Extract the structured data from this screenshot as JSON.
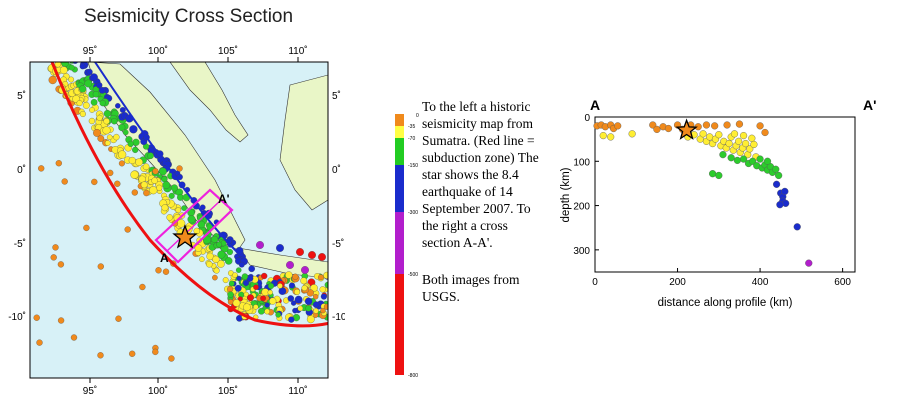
{
  "title": "Seismicity Cross Section",
  "map": {
    "lon_ticks": [
      "95˚",
      "100˚",
      "105˚",
      "110˚"
    ],
    "lat_ticks_left": [
      "5˚",
      "0˚",
      "-5˚",
      "-10˚"
    ],
    "lat_ticks_right": [
      "5˚",
      "0˚",
      "-5˚",
      "-10˚"
    ],
    "label_a": "A",
    "label_a_prime": "A'"
  },
  "colorbar": {
    "labels": [
      "0",
      "-35",
      "-70",
      "-150",
      "-300",
      "-500",
      "-800"
    ],
    "colors": [
      "#f08a1c",
      "#ffff44",
      "#22cc22",
      "#1a2ccc",
      "#b21ecc",
      "#ee1111"
    ]
  },
  "note": {
    "paragraph1": "To the left a historic seismicity map from Sumatra. (Red line = subduction zone) The star shows the 8.4 earthquake of 14 September 2007. To the right a cross section A-A'.",
    "paragraph2": "Both images from USGS."
  },
  "chart_data": {
    "type": "scatter",
    "title": "",
    "xlabel": "distance along profile (km)",
    "ylabel": "depth (km)",
    "xlim": [
      0,
      630
    ],
    "ylim": [
      0,
      350
    ],
    "y_inverted": true,
    "x_ticks": [
      "0",
      "200",
      "400",
      "600"
    ],
    "y_ticks": [
      "0",
      "100",
      "200",
      "300"
    ],
    "profile_start": "A",
    "profile_end": "A'",
    "star": {
      "x": 222,
      "y": 30
    },
    "points": [
      {
        "x": 5,
        "y": 20,
        "c": "orange"
      },
      {
        "x": 15,
        "y": 18,
        "c": "orange"
      },
      {
        "x": 25,
        "y": 22,
        "c": "orange"
      },
      {
        "x": 38,
        "y": 18,
        "c": "orange"
      },
      {
        "x": 45,
        "y": 26,
        "c": "orange"
      },
      {
        "x": 55,
        "y": 20,
        "c": "orange"
      },
      {
        "x": 20,
        "y": 42,
        "c": "yellow"
      },
      {
        "x": 38,
        "y": 45,
        "c": "yellow"
      },
      {
        "x": 90,
        "y": 38,
        "c": "yellow"
      },
      {
        "x": 140,
        "y": 18,
        "c": "orange"
      },
      {
        "x": 150,
        "y": 28,
        "c": "orange"
      },
      {
        "x": 165,
        "y": 22,
        "c": "orange"
      },
      {
        "x": 178,
        "y": 26,
        "c": "orange"
      },
      {
        "x": 200,
        "y": 18,
        "c": "orange"
      },
      {
        "x": 212,
        "y": 28,
        "c": "orange"
      },
      {
        "x": 232,
        "y": 18,
        "c": "orange"
      },
      {
        "x": 250,
        "y": 22,
        "c": "orange"
      },
      {
        "x": 270,
        "y": 18,
        "c": "orange"
      },
      {
        "x": 290,
        "y": 20,
        "c": "orange"
      },
      {
        "x": 320,
        "y": 18,
        "c": "orange"
      },
      {
        "x": 350,
        "y": 16,
        "c": "orange"
      },
      {
        "x": 400,
        "y": 20,
        "c": "orange"
      },
      {
        "x": 412,
        "y": 35,
        "c": "orange"
      },
      {
        "x": 225,
        "y": 45,
        "c": "yellow"
      },
      {
        "x": 240,
        "y": 40,
        "c": "yellow"
      },
      {
        "x": 255,
        "y": 50,
        "c": "yellow"
      },
      {
        "x": 262,
        "y": 38,
        "c": "yellow"
      },
      {
        "x": 270,
        "y": 55,
        "c": "yellow"
      },
      {
        "x": 278,
        "y": 45,
        "c": "yellow"
      },
      {
        "x": 285,
        "y": 60,
        "c": "yellow"
      },
      {
        "x": 292,
        "y": 50,
        "c": "yellow"
      },
      {
        "x": 300,
        "y": 40,
        "c": "yellow"
      },
      {
        "x": 305,
        "y": 65,
        "c": "yellow"
      },
      {
        "x": 312,
        "y": 55,
        "c": "yellow"
      },
      {
        "x": 318,
        "y": 70,
        "c": "yellow"
      },
      {
        "x": 325,
        "y": 60,
        "c": "yellow"
      },
      {
        "x": 330,
        "y": 45,
        "c": "yellow"
      },
      {
        "x": 335,
        "y": 75,
        "c": "yellow"
      },
      {
        "x": 342,
        "y": 65,
        "c": "yellow"
      },
      {
        "x": 348,
        "y": 55,
        "c": "yellow"
      },
      {
        "x": 352,
        "y": 80,
        "c": "yellow"
      },
      {
        "x": 358,
        "y": 70,
        "c": "yellow"
      },
      {
        "x": 365,
        "y": 60,
        "c": "yellow"
      },
      {
        "x": 370,
        "y": 85,
        "c": "yellow"
      },
      {
        "x": 375,
        "y": 72,
        "c": "yellow"
      },
      {
        "x": 380,
        "y": 48,
        "c": "yellow"
      },
      {
        "x": 385,
        "y": 62,
        "c": "yellow"
      },
      {
        "x": 390,
        "y": 90,
        "c": "yellow"
      },
      {
        "x": 338,
        "y": 38,
        "c": "yellow"
      },
      {
        "x": 360,
        "y": 42,
        "c": "yellow"
      },
      {
        "x": 310,
        "y": 85,
        "c": "green"
      },
      {
        "x": 330,
        "y": 92,
        "c": "green"
      },
      {
        "x": 345,
        "y": 98,
        "c": "green"
      },
      {
        "x": 360,
        "y": 95,
        "c": "green"
      },
      {
        "x": 372,
        "y": 105,
        "c": "green"
      },
      {
        "x": 382,
        "y": 100,
        "c": "green"
      },
      {
        "x": 392,
        "y": 110,
        "c": "green"
      },
      {
        "x": 400,
        "y": 95,
        "c": "green"
      },
      {
        "x": 405,
        "y": 115,
        "c": "green"
      },
      {
        "x": 412,
        "y": 108,
        "c": "green"
      },
      {
        "x": 418,
        "y": 120,
        "c": "green"
      },
      {
        "x": 425,
        "y": 112,
        "c": "green"
      },
      {
        "x": 430,
        "y": 125,
        "c": "green"
      },
      {
        "x": 438,
        "y": 118,
        "c": "green"
      },
      {
        "x": 445,
        "y": 132,
        "c": "green"
      },
      {
        "x": 285,
        "y": 128,
        "c": "green"
      },
      {
        "x": 300,
        "y": 132,
        "c": "green"
      },
      {
        "x": 418,
        "y": 100,
        "c": "green"
      },
      {
        "x": 440,
        "y": 152,
        "c": "blue"
      },
      {
        "x": 450,
        "y": 172,
        "c": "blue"
      },
      {
        "x": 455,
        "y": 180,
        "c": "blue"
      },
      {
        "x": 460,
        "y": 168,
        "c": "blue"
      },
      {
        "x": 455,
        "y": 190,
        "c": "blue"
      },
      {
        "x": 462,
        "y": 195,
        "c": "blue"
      },
      {
        "x": 448,
        "y": 198,
        "c": "blue"
      },
      {
        "x": 490,
        "y": 248,
        "c": "blue"
      },
      {
        "x": 518,
        "y": 330,
        "c": "purple"
      }
    ]
  }
}
